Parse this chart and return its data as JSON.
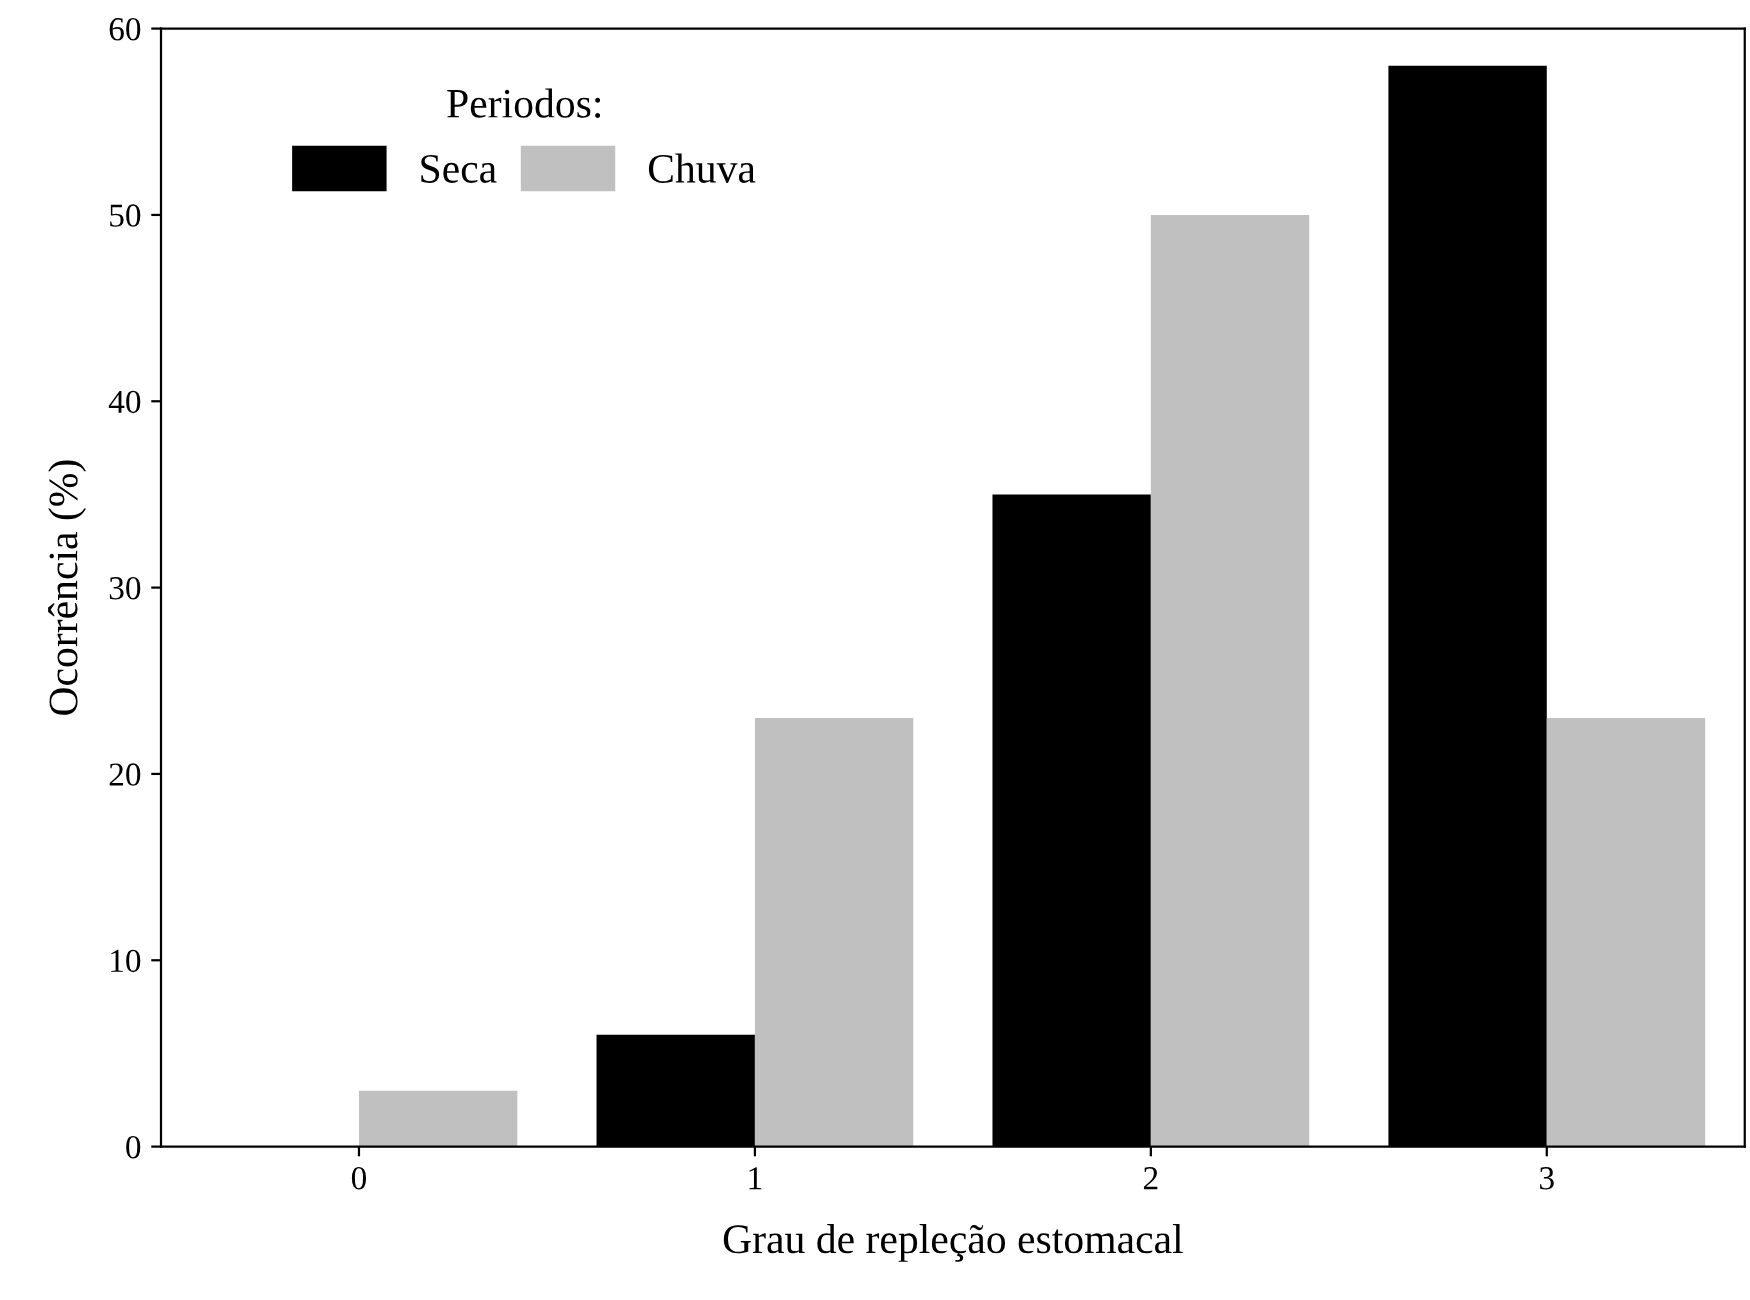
{
  "chart_data": {
    "type": "bar",
    "xlabel": "Grau de repleção estomacal",
    "ylabel": "Ocorrência (%)",
    "legend_title": "Periodos:",
    "categories": [
      "0",
      "1",
      "2",
      "3"
    ],
    "series": [
      {
        "name": "Seca",
        "color": "#000000",
        "values": [
          0,
          6,
          35,
          58
        ]
      },
      {
        "name": "Chuva",
        "color": "#c0c0c0",
        "values": [
          3,
          23,
          50,
          23
        ]
      }
    ],
    "ylim": [
      0,
      60
    ],
    "yticks": [
      0,
      10,
      20,
      30,
      40,
      50,
      60
    ],
    "grid": false,
    "legend": "top left"
  }
}
